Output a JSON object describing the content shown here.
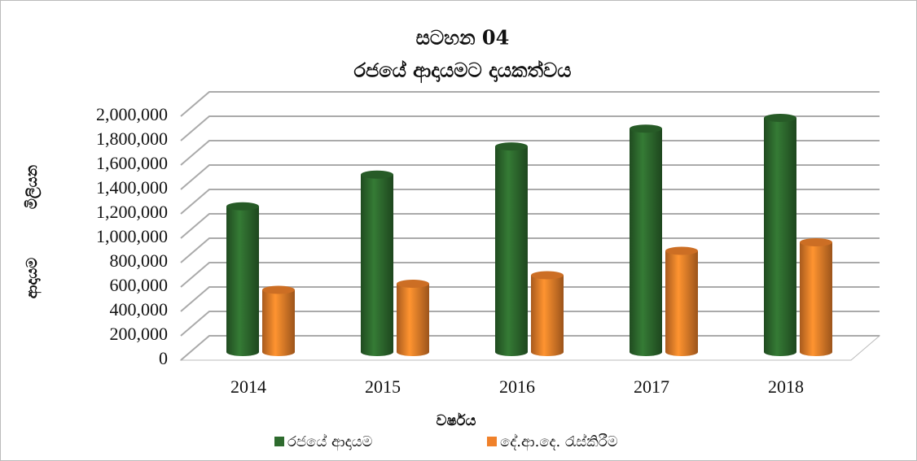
{
  "chart_data": {
    "type": "bar3d",
    "title": "සටහන 04",
    "subtitle": "රජයේ ආදායමට දායකත්වය",
    "y_label_upper": "මිලියන",
    "y_label_lower": "ආදායම",
    "x_label": "වර්ෂය",
    "categories": [
      "2014",
      "2015",
      "2016",
      "2017",
      "2018"
    ],
    "series": [
      {
        "name": "රජයේ ආදායම",
        "color": "#2e6b2e",
        "values": [
          1195000,
          1455000,
          1686000,
          1832000,
          1920000
        ]
      },
      {
        "name": "දේ.ආ.දෙ. රැස්කිරීම",
        "color": "#f0812a",
        "values": [
          510000,
          560000,
          630000,
          830000,
          900000
        ]
      }
    ],
    "ylim": [
      0,
      2000000
    ],
    "yticks": [
      0,
      {
        "value": 200000,
        "label": "200,000"
      },
      {
        "value": 400000,
        "label": "400,000"
      },
      {
        "value": 600000,
        "label": "600,000"
      },
      {
        "value": 800000,
        "label": "800,000"
      },
      {
        "value": 1000000,
        "label": "1,000,000"
      },
      {
        "value": 1200000,
        "label": "1,200,000"
      },
      {
        "value": 1400000,
        "label": "1,400,000"
      },
      {
        "value": 1600000,
        "label": "1,600,000"
      },
      {
        "value": 1800000,
        "label": "1,800,000"
      },
      {
        "value": 2000000,
        "label": "2,000,000"
      }
    ],
    "grid": true
  }
}
